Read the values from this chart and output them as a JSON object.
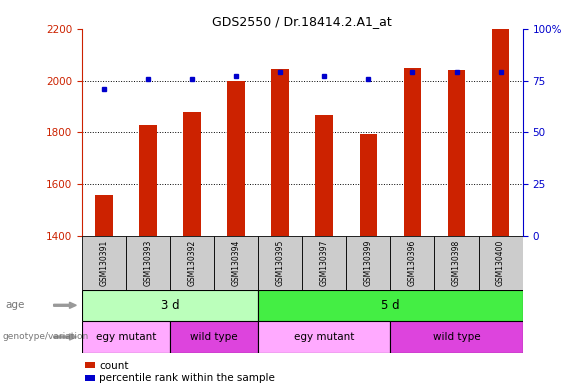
{
  "title": "GDS2550 / Dr.18414.2.A1_at",
  "samples": [
    "GSM130391",
    "GSM130393",
    "GSM130392",
    "GSM130394",
    "GSM130395",
    "GSM130397",
    "GSM130399",
    "GSM130396",
    "GSM130398",
    "GSM130400"
  ],
  "counts": [
    1558,
    1830,
    1880,
    2000,
    2045,
    1868,
    1795,
    2050,
    2042,
    2200
  ],
  "percentiles": [
    71,
    76,
    76,
    77,
    79,
    77,
    76,
    79,
    79,
    79
  ],
  "ylim_left": [
    1400,
    2200
  ],
  "ylim_right": [
    0,
    100
  ],
  "yticks_left": [
    1400,
    1600,
    1800,
    2000,
    2200
  ],
  "yticks_right": [
    0,
    25,
    50,
    75,
    100
  ],
  "right_tick_labels": [
    "0",
    "25",
    "50",
    "75",
    "100%"
  ],
  "bar_color": "#cc2200",
  "dot_color": "#0000cc",
  "bar_width": 0.4,
  "age_labels": [
    {
      "label": "3 d",
      "start": 0,
      "end": 4
    },
    {
      "label": "5 d",
      "start": 4,
      "end": 10
    }
  ],
  "age_colors": [
    "#bbffbb",
    "#44ee44"
  ],
  "genotype_labels": [
    {
      "label": "egy mutant",
      "start": 0,
      "end": 2
    },
    {
      "label": "wild type",
      "start": 2,
      "end": 4
    },
    {
      "label": "egy mutant",
      "start": 4,
      "end": 7
    },
    {
      "label": "wild type",
      "start": 7,
      "end": 10
    }
  ],
  "genotype_colors": [
    "#ffaaff",
    "#dd44dd",
    "#ffaaff",
    "#dd44dd"
  ],
  "age_row_label": "age",
  "genotype_row_label": "genotype/variation",
  "legend_count_label": "count",
  "legend_percentile_label": "percentile rank within the sample",
  "left_axis_color": "#cc2200",
  "right_axis_color": "#0000cc",
  "background_color": "#ffffff",
  "sample_bg_color": "#cccccc"
}
